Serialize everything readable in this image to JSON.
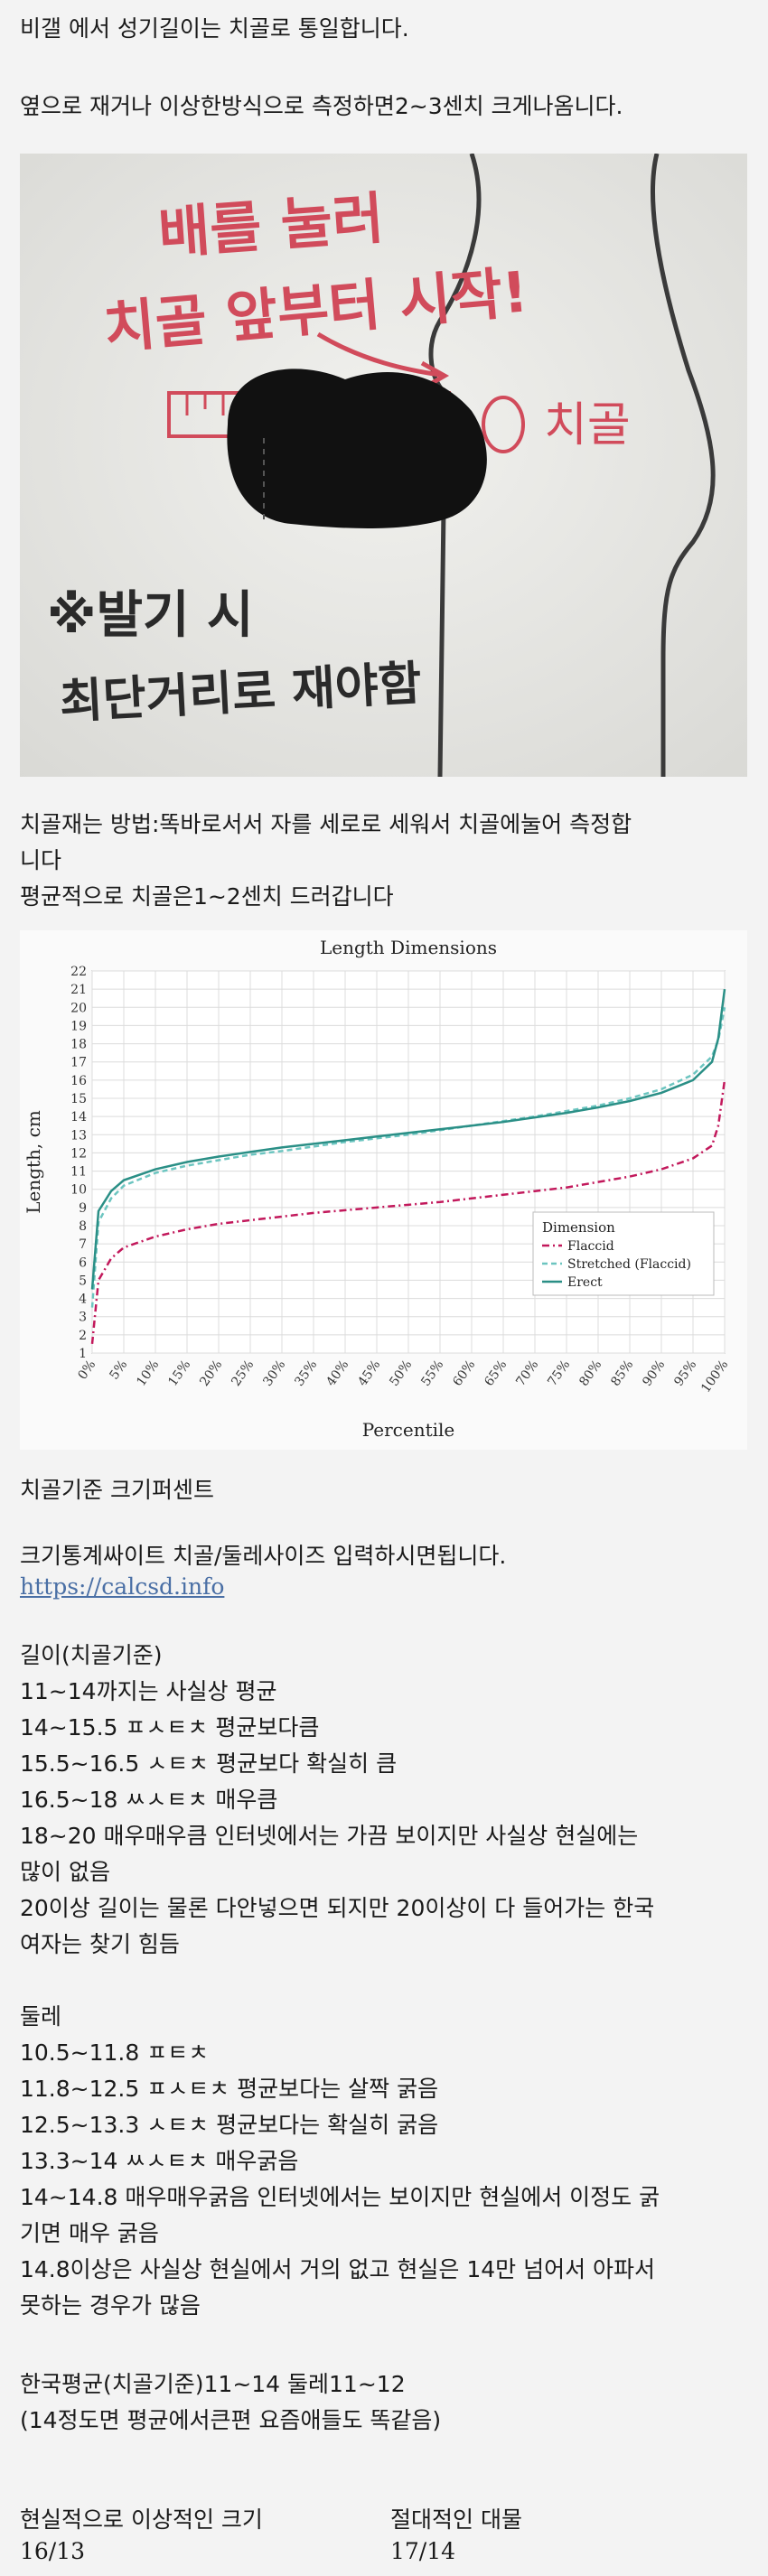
{
  "intro": {
    "line1": "비갤 에서 성기길이는 치골로 통일합니다.",
    "line2": "옆으로 재거나 이상한방식으로 측정하면2~3센치 크게나옴니다."
  },
  "illustration": {
    "top_text_1": "배를 눌러",
    "top_text_2": "치골 앞부터 시작!",
    "bone_label": "치골",
    "bottom_text_1": "※발기 시",
    "bottom_text_2": "최단거리로 재야함"
  },
  "method": {
    "line1": "치골재는 방법:똑바로서서 자를 세로로 세워서 치골에눌어 측정합",
    "line2": "니다",
    "line3": "평균적으로 치골은1~2센치 드러갑니다"
  },
  "chart_data": {
    "type": "line",
    "title": "Length Dimensions",
    "xlabel": "Percentile",
    "ylabel": "Length, cm",
    "xlim": [
      0,
      100
    ],
    "ylim": [
      1,
      22
    ],
    "x_ticks": [
      "0%",
      "5%",
      "10%",
      "15%",
      "20%",
      "25%",
      "30%",
      "35%",
      "40%",
      "45%",
      "50%",
      "55%",
      "60%",
      "65%",
      "70%",
      "75%",
      "80%",
      "85%",
      "90%",
      "95%",
      "100%"
    ],
    "y_ticks": [
      1,
      2,
      3,
      4,
      5,
      6,
      7,
      8,
      9,
      10,
      11,
      12,
      13,
      14,
      15,
      16,
      17,
      18,
      19,
      20,
      21,
      22
    ],
    "grid": true,
    "legend_title": "Dimension",
    "legend_position": "bottom-right",
    "x": [
      0,
      1,
      3,
      5,
      10,
      15,
      20,
      25,
      30,
      35,
      40,
      45,
      50,
      55,
      60,
      65,
      70,
      75,
      80,
      85,
      90,
      95,
      98,
      99,
      100
    ],
    "series": [
      {
        "name": "Flaccid",
        "color": "#c2185b",
        "style": "dashdot",
        "values": [
          1.5,
          5.0,
          6.2,
          6.8,
          7.4,
          7.8,
          8.1,
          8.3,
          8.5,
          8.7,
          8.85,
          9.0,
          9.15,
          9.3,
          9.5,
          9.7,
          9.9,
          10.1,
          10.4,
          10.7,
          11.1,
          11.7,
          12.4,
          13.5,
          16.0
        ]
      },
      {
        "name": "Stretched (Flaccid)",
        "color": "#6cc5c0",
        "style": "dashed",
        "values": [
          3.5,
          8.2,
          9.5,
          10.2,
          10.9,
          11.3,
          11.6,
          11.9,
          12.1,
          12.35,
          12.6,
          12.8,
          13.0,
          13.25,
          13.5,
          13.75,
          14.0,
          14.3,
          14.6,
          15.0,
          15.5,
          16.3,
          17.3,
          18.2,
          20.0
        ]
      },
      {
        "name": "Erect",
        "color": "#2a8f86",
        "style": "solid",
        "values": [
          4.5,
          8.8,
          9.9,
          10.5,
          11.1,
          11.5,
          11.8,
          12.05,
          12.3,
          12.5,
          12.7,
          12.9,
          13.1,
          13.3,
          13.5,
          13.7,
          13.95,
          14.2,
          14.5,
          14.85,
          15.3,
          16.0,
          17.0,
          18.3,
          21.0
        ]
      }
    ]
  },
  "pct_heading": "치골기준 크기퍼센트",
  "site": {
    "text": "크기통계싸이트 치골/둘레사이즈 입력하시면됩니다.",
    "url": "https://calcsd.info"
  },
  "length_section": {
    "title": "길이(치골기준)",
    "lines": [
      "11~14까지는 사실상 평균",
      "14~15.5 ㅍㅅㅌㅊ 평균보다큼",
      "15.5~16.5 ㅅㅌㅊ 평균보다 확실히 큼",
      "16.5~18 ㅆㅅㅌㅊ 매우큼",
      "18~20 매우매우큼 인터넷에서는 가끔 보이지만 사실상 현실에는",
      "많이 없음",
      "20이상 길이는 물론 다안넣으면 되지만 20이상이 다 들어가는 한국",
      "여자는 찾기 힘듬"
    ]
  },
  "girth_section": {
    "title": "둘레",
    "lines": [
      "10.5~11.8 ㅍㅌㅊ",
      "11.8~12.5 ㅍㅅㅌㅊ 평균보다는 살짝 굵음",
      "12.5~13.3 ㅅㅌㅊ 평균보다는 확실히 굵음",
      "13.3~14 ㅆㅅㅌㅊ 매우굵음",
      "14~14.8 매우매우굵음 인터넷에서는 보이지만 현실에서 이정도 굵",
      "기면 매우 굵음",
      "14.8이상은 사실상 현실에서 거의 없고 현실은 14만 넘어서 아파서",
      "못하는 경우가 많음"
    ]
  },
  "korea_avg": {
    "line1": "한국평균(치골기준)11~14 둘레11~12",
    "line2": "(14정도면 평균에서큰편 요즘애들도 똑같음)"
  },
  "summary": {
    "left_label": "현실적으로 이상적인 크기",
    "left_value": "16/13",
    "right_label": "절대적인 대물",
    "right_value": "17/14"
  }
}
